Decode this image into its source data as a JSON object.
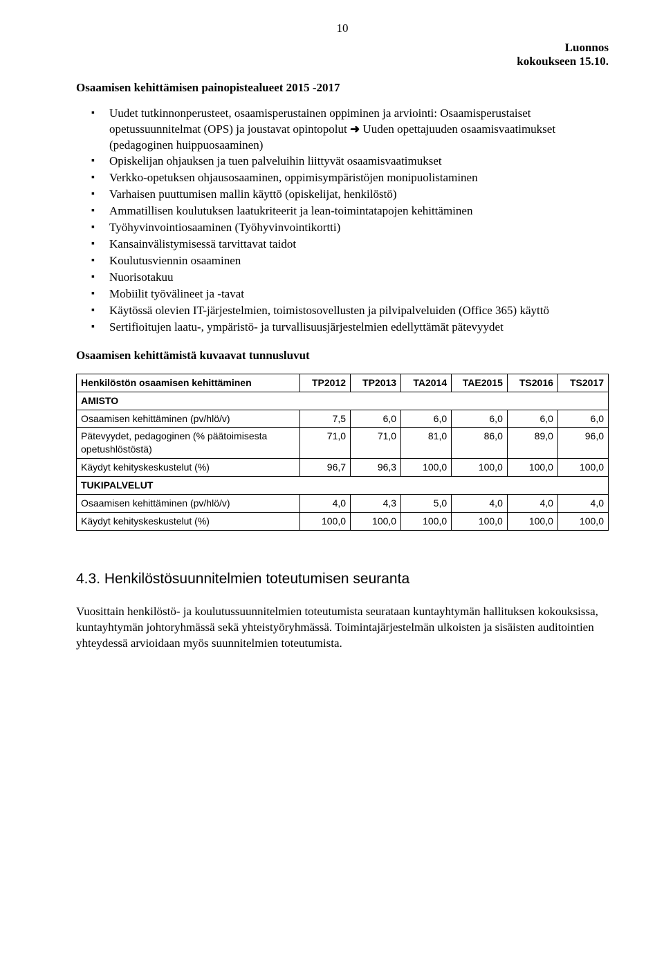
{
  "page_number": "10",
  "header": {
    "line1": "Luonnos",
    "line2": "kokoukseen 15.10."
  },
  "subtitle": "Osaamisen kehittämisen painopistealueet 2015 -2017",
  "bullets": [
    "Uudet tutkinnonperusteet, osaamisperustainen oppiminen ja arviointi: Osaamisperustaiset opetussuunnitelmat (OPS) ja joustavat opintopolut |ARROW| Uuden opettajuuden osaamisvaatimukset (pedagoginen huippuosaaminen)",
    "Opiskelijan ohjauksen ja tuen palveluihin liittyvät osaamisvaatimukset",
    "Verkko-opetuksen ohjausosaaminen, oppimisympäristöjen monipuolistaminen",
    "Varhaisen puuttumisen mallin käyttö (opiskelijat, henkilöstö)",
    "Ammatillisen koulutuksen laatukriteerit ja lean-toimintatapojen kehittäminen",
    "Työhyvinvointiosaaminen (Työhyvinvointikortti)",
    "Kansainvälistymisessä tarvittavat taidot",
    "Koulutusviennin osaaminen",
    "Nuorisotakuu",
    "Mobiilit työvälineet ja -tavat",
    "Käytössä olevien IT-järjestelmien, toimistosovellusten ja pilvipalveluiden (Office 365) käyttö",
    "Sertifioitujen laatu-, ympäristö- ja turvallisuusjärjestelmien edellyttämät pätevyydet"
  ],
  "table_title": "Osaamisen kehittämistä kuvaavat tunnusluvut",
  "table": {
    "columns": [
      "Henkilöstön osaamisen kehittäminen",
      "TP2012",
      "TP2013",
      "TA2014",
      "TAE2015",
      "TS2016",
      "TS2017"
    ],
    "col_widths_pct": [
      42,
      9.5,
      9.5,
      9.5,
      10.5,
      9.5,
      9.5
    ],
    "rows": [
      {
        "type": "section",
        "label": "AMISTO"
      },
      {
        "type": "data",
        "label": "Osaamisen kehittäminen (pv/hlö/v)",
        "values": [
          "7,5",
          "6,0",
          "6,0",
          "6,0",
          "6,0",
          "6,0"
        ]
      },
      {
        "type": "data",
        "label": "Pätevyydet, pedagoginen (% päätoimisesta opetushlöstöstä)",
        "values": [
          "71,0",
          "71,0",
          "81,0",
          "86,0",
          "89,0",
          "96,0"
        ]
      },
      {
        "type": "data",
        "label": "Käydyt kehityskeskustelut (%)",
        "values": [
          "96,7",
          "96,3",
          "100,0",
          "100,0",
          "100,0",
          "100,0"
        ]
      },
      {
        "type": "section",
        "label": "TUKIPALVELUT"
      },
      {
        "type": "data",
        "label": "Osaamisen kehittäminen (pv/hlö/v)",
        "values": [
          "4,0",
          "4,3",
          "5,0",
          "4,0",
          "4,0",
          "4,0"
        ]
      },
      {
        "type": "data",
        "label": "Käydyt kehityskeskustelut (%)",
        "values": [
          "100,0",
          "100,0",
          "100,0",
          "100,0",
          "100,0",
          "100,0"
        ]
      }
    ]
  },
  "h43": "4.3. Henkilöstösuunnitelmien toteutumisen seuranta",
  "para": "Vuosittain henkilöstö- ja koulutussuunnitelmien toteutumista seurataan kuntayhtymän hallituksen kokouksissa, kuntayhtymän johtoryhmässä sekä yhteistyöryhmässä. Toimintajärjestelmän ulkoisten ja sisäisten auditointien yhteydessä arvioidaan myös suunnitelmien toteutumista."
}
